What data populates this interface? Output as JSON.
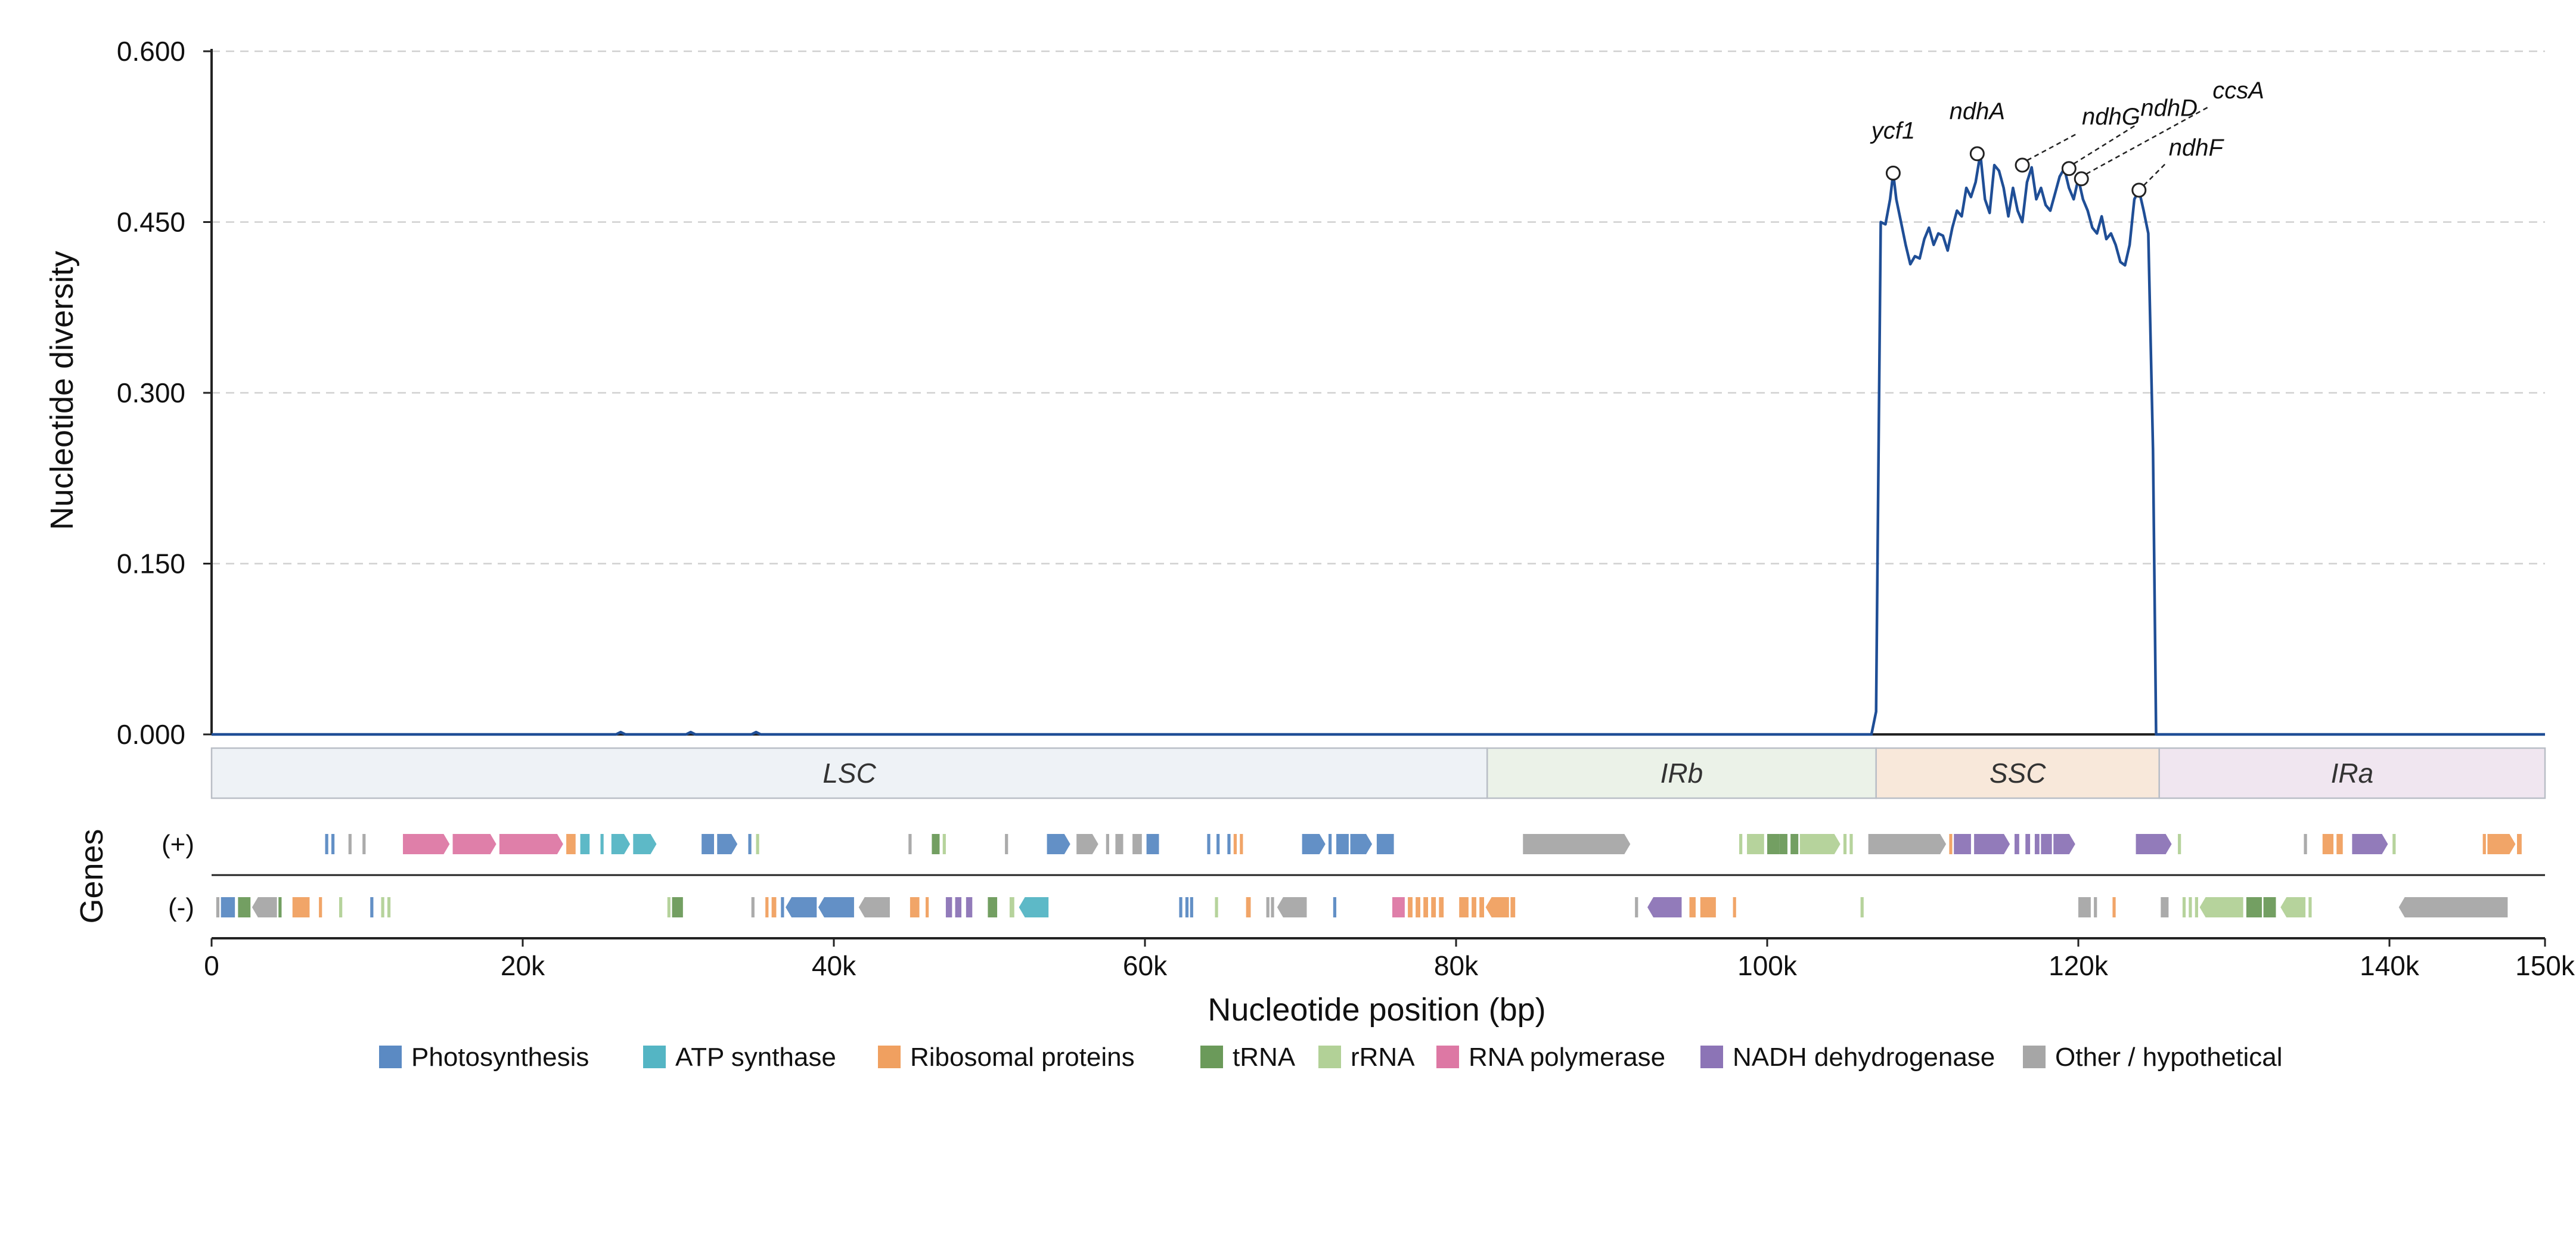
{
  "chart_data": {
    "type": "line",
    "xlabel": "Nucleotide position (bp)",
    "ylabel": "Nucleotide diversity",
    "genes_label": "Genes",
    "strand_labels": {
      "plus": "(+)",
      "minus": "(-)"
    },
    "xlim": [
      0,
      150000
    ],
    "ylim": [
      0,
      0.6
    ],
    "yticks": [
      0.0,
      0.15,
      0.3,
      0.45,
      0.6
    ],
    "ytick_labels": [
      "0.000",
      "0.150",
      "0.300",
      "0.450",
      "0.600"
    ],
    "xticks": [
      0,
      20000,
      40000,
      60000,
      80000,
      100000,
      120000,
      140000,
      150000
    ],
    "xtick_labels": [
      "0",
      "20k",
      "40k",
      "60k",
      "80k",
      "100k",
      "120k",
      "140k",
      "150k"
    ],
    "grid": "horizontal dashed",
    "legend_position": "bottom-center",
    "line_color": "#1f4e96",
    "series": [
      {
        "x": [
          0,
          26000,
          26300,
          26600,
          30500,
          30800,
          31100,
          34700,
          35000,
          35300,
          106700,
          107000,
          107300,
          107600,
          107900,
          108100,
          108300,
          108600,
          108900,
          109200,
          109500,
          109800,
          110100,
          110400,
          110700,
          111000,
          111300,
          111600,
          111900,
          112200,
          112500,
          112800,
          113100,
          113400,
          113700,
          114000,
          114300,
          114600,
          114900,
          115200,
          115500,
          115800,
          116100,
          116400,
          116700,
          117000,
          117300,
          117600,
          117900,
          118200,
          118500,
          118800,
          119100,
          119400,
          119700,
          120000,
          120300,
          120600,
          120900,
          121200,
          121500,
          121800,
          122100,
          122400,
          122700,
          123000,
          123300,
          123600,
          123900,
          124200,
          124500,
          124800,
          125000,
          125200,
          150000
        ],
        "y": [
          0,
          0,
          0.002,
          0,
          0,
          0.002,
          0,
          0,
          0.002,
          0,
          0,
          0.02,
          0.45,
          0.448,
          0.47,
          0.493,
          0.47,
          0.45,
          0.43,
          0.413,
          0.42,
          0.418,
          0.435,
          0.445,
          0.43,
          0.44,
          0.438,
          0.425,
          0.445,
          0.46,
          0.455,
          0.48,
          0.472,
          0.485,
          0.51,
          0.47,
          0.458,
          0.5,
          0.495,
          0.48,
          0.455,
          0.48,
          0.46,
          0.45,
          0.485,
          0.498,
          0.47,
          0.48,
          0.465,
          0.46,
          0.475,
          0.49,
          0.497,
          0.48,
          0.47,
          0.488,
          0.47,
          0.46,
          0.445,
          0.44,
          0.455,
          0.435,
          0.44,
          0.43,
          0.415,
          0.412,
          0.43,
          0.47,
          0.478,
          0.46,
          0.44,
          0.25,
          0.0,
          0.0,
          0.0
        ]
      }
    ],
    "annotations": [
      {
        "label": "ycf1",
        "x": 108100,
        "y": 0.493,
        "leader": false
      },
      {
        "label": "ndhA",
        "x": 113500,
        "y": 0.51,
        "leader": false
      },
      {
        "label": "ndhG",
        "x": 116400,
        "y": 0.5,
        "leader": true
      },
      {
        "label": "ndhD",
        "x": 119400,
        "y": 0.497,
        "leader": true
      },
      {
        "label": "ccsA",
        "x": 120200,
        "y": 0.488,
        "leader": true
      },
      {
        "label": "ndhF",
        "x": 123900,
        "y": 0.478,
        "leader": true
      }
    ],
    "regions": [
      {
        "label": "LSC",
        "start": 0,
        "end": 82000,
        "color": "#eef2f6"
      },
      {
        "label": "IRb",
        "start": 82000,
        "end": 107000,
        "color": "#ebf2e8"
      },
      {
        "label": "SSC",
        "start": 107000,
        "end": 125200,
        "color": "#f8e8da"
      },
      {
        "label": "IRa",
        "start": 125200,
        "end": 150000,
        "color": "#f0e6f0"
      }
    ],
    "legend": [
      {
        "label": "Photosynthesis",
        "color": "#5b8ac3"
      },
      {
        "label": "ATP synthase",
        "color": "#54b5c4"
      },
      {
        "label": "Ribosomal proteins",
        "color": "#f0a060"
      },
      {
        "label": "tRNA",
        "color": "#6b9a5a"
      },
      {
        "label": "rRNA",
        "color": "#b2d197"
      },
      {
        "label": "RNA polymerase",
        "color": "#dd78a4"
      },
      {
        "label": "NADH dehydrogenase",
        "color": "#8c74b6"
      },
      {
        "label": "Other / hypothetical",
        "color": "#a6a6a6"
      }
    ],
    "genes_plus": [
      [
        7300,
        7500,
        "Photosynthesis"
      ],
      [
        7700,
        7900,
        "Photosynthesis"
      ],
      [
        8800,
        9000,
        "Other / hypothetical"
      ],
      [
        9700,
        9900,
        "Other / hypothetical"
      ],
      [
        12300,
        15300,
        "RNA polymerase"
      ],
      [
        15500,
        18300,
        "RNA polymerase"
      ],
      [
        18500,
        22600,
        "RNA polymerase"
      ],
      [
        22800,
        23400,
        "Ribosomal proteins"
      ],
      [
        23700,
        24300,
        "ATP synthase"
      ],
      [
        25000,
        25200,
        "ATP synthase"
      ],
      [
        25700,
        26900,
        "ATP synthase"
      ],
      [
        27100,
        28600,
        "ATP synthase"
      ],
      [
        31500,
        32300,
        "Photosynthesis"
      ],
      [
        32500,
        33800,
        "Photosynthesis"
      ],
      [
        34500,
        34700,
        "Photosynthesis"
      ],
      [
        35000,
        35200,
        "rRNA"
      ],
      [
        44800,
        45000,
        "Other / hypothetical"
      ],
      [
        46300,
        46800,
        "tRNA"
      ],
      [
        47000,
        47200,
        "rRNA"
      ],
      [
        51000,
        51200,
        "Other / hypothetical"
      ],
      [
        53700,
        55200,
        "Photosynthesis"
      ],
      [
        55600,
        57000,
        "Other / hypothetical"
      ],
      [
        57500,
        57700,
        "Other / hypothetical"
      ],
      [
        58100,
        58600,
        "Other / hypothetical"
      ],
      [
        59200,
        59800,
        "Other / hypothetical"
      ],
      [
        60100,
        60900,
        "Photosynthesis"
      ],
      [
        64000,
        64200,
        "Photosynthesis"
      ],
      [
        64600,
        64800,
        "Photosynthesis"
      ],
      [
        65300,
        65500,
        "Photosynthesis"
      ],
      [
        65700,
        65900,
        "Ribosomal proteins"
      ],
      [
        66100,
        66300,
        "Ribosomal proteins"
      ],
      [
        70100,
        71600,
        "Photosynthesis"
      ],
      [
        71800,
        72000,
        "Photosynthesis"
      ],
      [
        72300,
        73100,
        "Photosynthesis"
      ],
      [
        73200,
        74600,
        "Photosynthesis"
      ],
      [
        74900,
        76000,
        "Photosynthesis"
      ],
      [
        84300,
        91200,
        "Other / hypothetical"
      ],
      [
        98200,
        98400,
        "rRNA"
      ],
      [
        98700,
        99800,
        "rRNA"
      ],
      [
        100000,
        100800,
        "tRNA"
      ],
      [
        100800,
        101300,
        "tRNA"
      ],
      [
        101500,
        102000,
        "tRNA"
      ],
      [
        102100,
        104700,
        "rRNA"
      ],
      [
        104900,
        105100,
        "rRNA"
      ],
      [
        105300,
        105500,
        "rRNA"
      ],
      [
        106500,
        111500,
        "Other / hypothetical"
      ],
      [
        111700,
        111900,
        "Ribosomal proteins"
      ],
      [
        112000,
        113100,
        "NADH dehydrogenase"
      ],
      [
        113300,
        115600,
        "NADH dehydrogenase"
      ],
      [
        115900,
        116200,
        "NADH dehydrogenase"
      ],
      [
        116600,
        116900,
        "NADH dehydrogenase"
      ],
      [
        117200,
        117500,
        "NADH dehydrogenase"
      ],
      [
        117600,
        118300,
        "NADH dehydrogenase"
      ],
      [
        118400,
        119800,
        "NADH dehydrogenase"
      ],
      [
        123700,
        126000,
        "NADH dehydrogenase"
      ],
      [
        126400,
        126600,
        "rRNA"
      ],
      [
        134500,
        134700,
        "Other / hypothetical"
      ],
      [
        135700,
        136400,
        "Ribosomal proteins"
      ],
      [
        136600,
        137000,
        "Ribosomal proteins"
      ],
      [
        137600,
        139900,
        "NADH dehydrogenase"
      ],
      [
        140200,
        140400,
        "rRNA"
      ],
      [
        146000,
        146200,
        "Ribosomal proteins"
      ],
      [
        146300,
        148100,
        "Ribosomal proteins"
      ],
      [
        148200,
        148500,
        "Ribosomal proteins"
      ]
    ],
    "genes_minus": [
      [
        300,
        500,
        "Other / hypothetical"
      ],
      [
        600,
        1500,
        "Photosynthesis"
      ],
      [
        1700,
        2500,
        "tRNA"
      ],
      [
        2600,
        4200,
        "Other / hypothetical"
      ],
      [
        4300,
        4500,
        "tRNA"
      ],
      [
        5200,
        6300,
        "Ribosomal proteins"
      ],
      [
        6900,
        7100,
        "Ribosomal proteins"
      ],
      [
        8200,
        8400,
        "rRNA"
      ],
      [
        10200,
        10400,
        "Photosynthesis"
      ],
      [
        10900,
        11100,
        "rRNA"
      ],
      [
        11300,
        11500,
        "rRNA"
      ],
      [
        29300,
        29500,
        "rRNA"
      ],
      [
        29600,
        30300,
        "tRNA"
      ],
      [
        34700,
        34900,
        "Other / hypothetical"
      ],
      [
        35600,
        35800,
        "Ribosomal proteins"
      ],
      [
        36000,
        36300,
        "Ribosomal proteins"
      ],
      [
        36600,
        36800,
        "Photosynthesis"
      ],
      [
        36900,
        38900,
        "Photosynthesis"
      ],
      [
        39000,
        41300,
        "Photosynthesis"
      ],
      [
        41600,
        43600,
        "Other / hypothetical"
      ],
      [
        44900,
        45500,
        "Ribosomal proteins"
      ],
      [
        45900,
        46100,
        "Ribosomal proteins"
      ],
      [
        47200,
        47600,
        "NADH dehydrogenase"
      ],
      [
        47800,
        48200,
        "NADH dehydrogenase"
      ],
      [
        48500,
        48900,
        "NADH dehydrogenase"
      ],
      [
        49900,
        50500,
        "tRNA"
      ],
      [
        51300,
        51600,
        "rRNA"
      ],
      [
        51900,
        53800,
        "ATP synthase"
      ],
      [
        62200,
        62400,
        "Photosynthesis"
      ],
      [
        62600,
        62800,
        "Photosynthesis"
      ],
      [
        62900,
        63100,
        "Photosynthesis"
      ],
      [
        64500,
        64700,
        "rRNA"
      ],
      [
        66500,
        66800,
        "Ribosomal proteins"
      ],
      [
        67800,
        68000,
        "Other / hypothetical"
      ],
      [
        68100,
        68300,
        "Other / hypothetical"
      ],
      [
        68500,
        70400,
        "Other / hypothetical"
      ],
      [
        72100,
        72300,
        "Photosynthesis"
      ],
      [
        75900,
        76700,
        "RNA polymerase"
      ],
      [
        76900,
        77200,
        "Ribosomal proteins"
      ],
      [
        77400,
        77700,
        "Ribosomal proteins"
      ],
      [
        77900,
        78200,
        "Ribosomal proteins"
      ],
      [
        78400,
        78700,
        "Ribosomal proteins"
      ],
      [
        78900,
        79200,
        "Ribosomal proteins"
      ],
      [
        80200,
        80800,
        "Ribosomal proteins"
      ],
      [
        81000,
        81300,
        "Ribosomal proteins"
      ],
      [
        81500,
        81800,
        "Ribosomal proteins"
      ],
      [
        81900,
        83400,
        "Ribosomal proteins"
      ],
      [
        83500,
        83800,
        "Ribosomal proteins"
      ],
      [
        91500,
        91700,
        "Other / hypothetical"
      ],
      [
        92300,
        94500,
        "NADH dehydrogenase"
      ],
      [
        95000,
        95400,
        "Ribosomal proteins"
      ],
      [
        95700,
        96700,
        "Ribosomal proteins"
      ],
      [
        97800,
        98000,
        "Ribosomal proteins"
      ],
      [
        106000,
        106200,
        "rRNA"
      ],
      [
        120000,
        120800,
        "Other / hypothetical"
      ],
      [
        121000,
        121200,
        "Other / hypothetical"
      ],
      [
        122200,
        122400,
        "Ribosomal proteins"
      ],
      [
        125300,
        125800,
        "Other / hypothetical"
      ],
      [
        126700,
        126900,
        "rRNA"
      ],
      [
        127100,
        127300,
        "rRNA"
      ],
      [
        127500,
        127700,
        "rRNA"
      ],
      [
        127800,
        130600,
        "rRNA"
      ],
      [
        130800,
        131800,
        "tRNA"
      ],
      [
        131900,
        132700,
        "tRNA"
      ],
      [
        133000,
        134600,
        "rRNA"
      ],
      [
        134800,
        135000,
        "rRNA"
      ],
      [
        140600,
        147600,
        "Other / hypothetical"
      ]
    ]
  }
}
